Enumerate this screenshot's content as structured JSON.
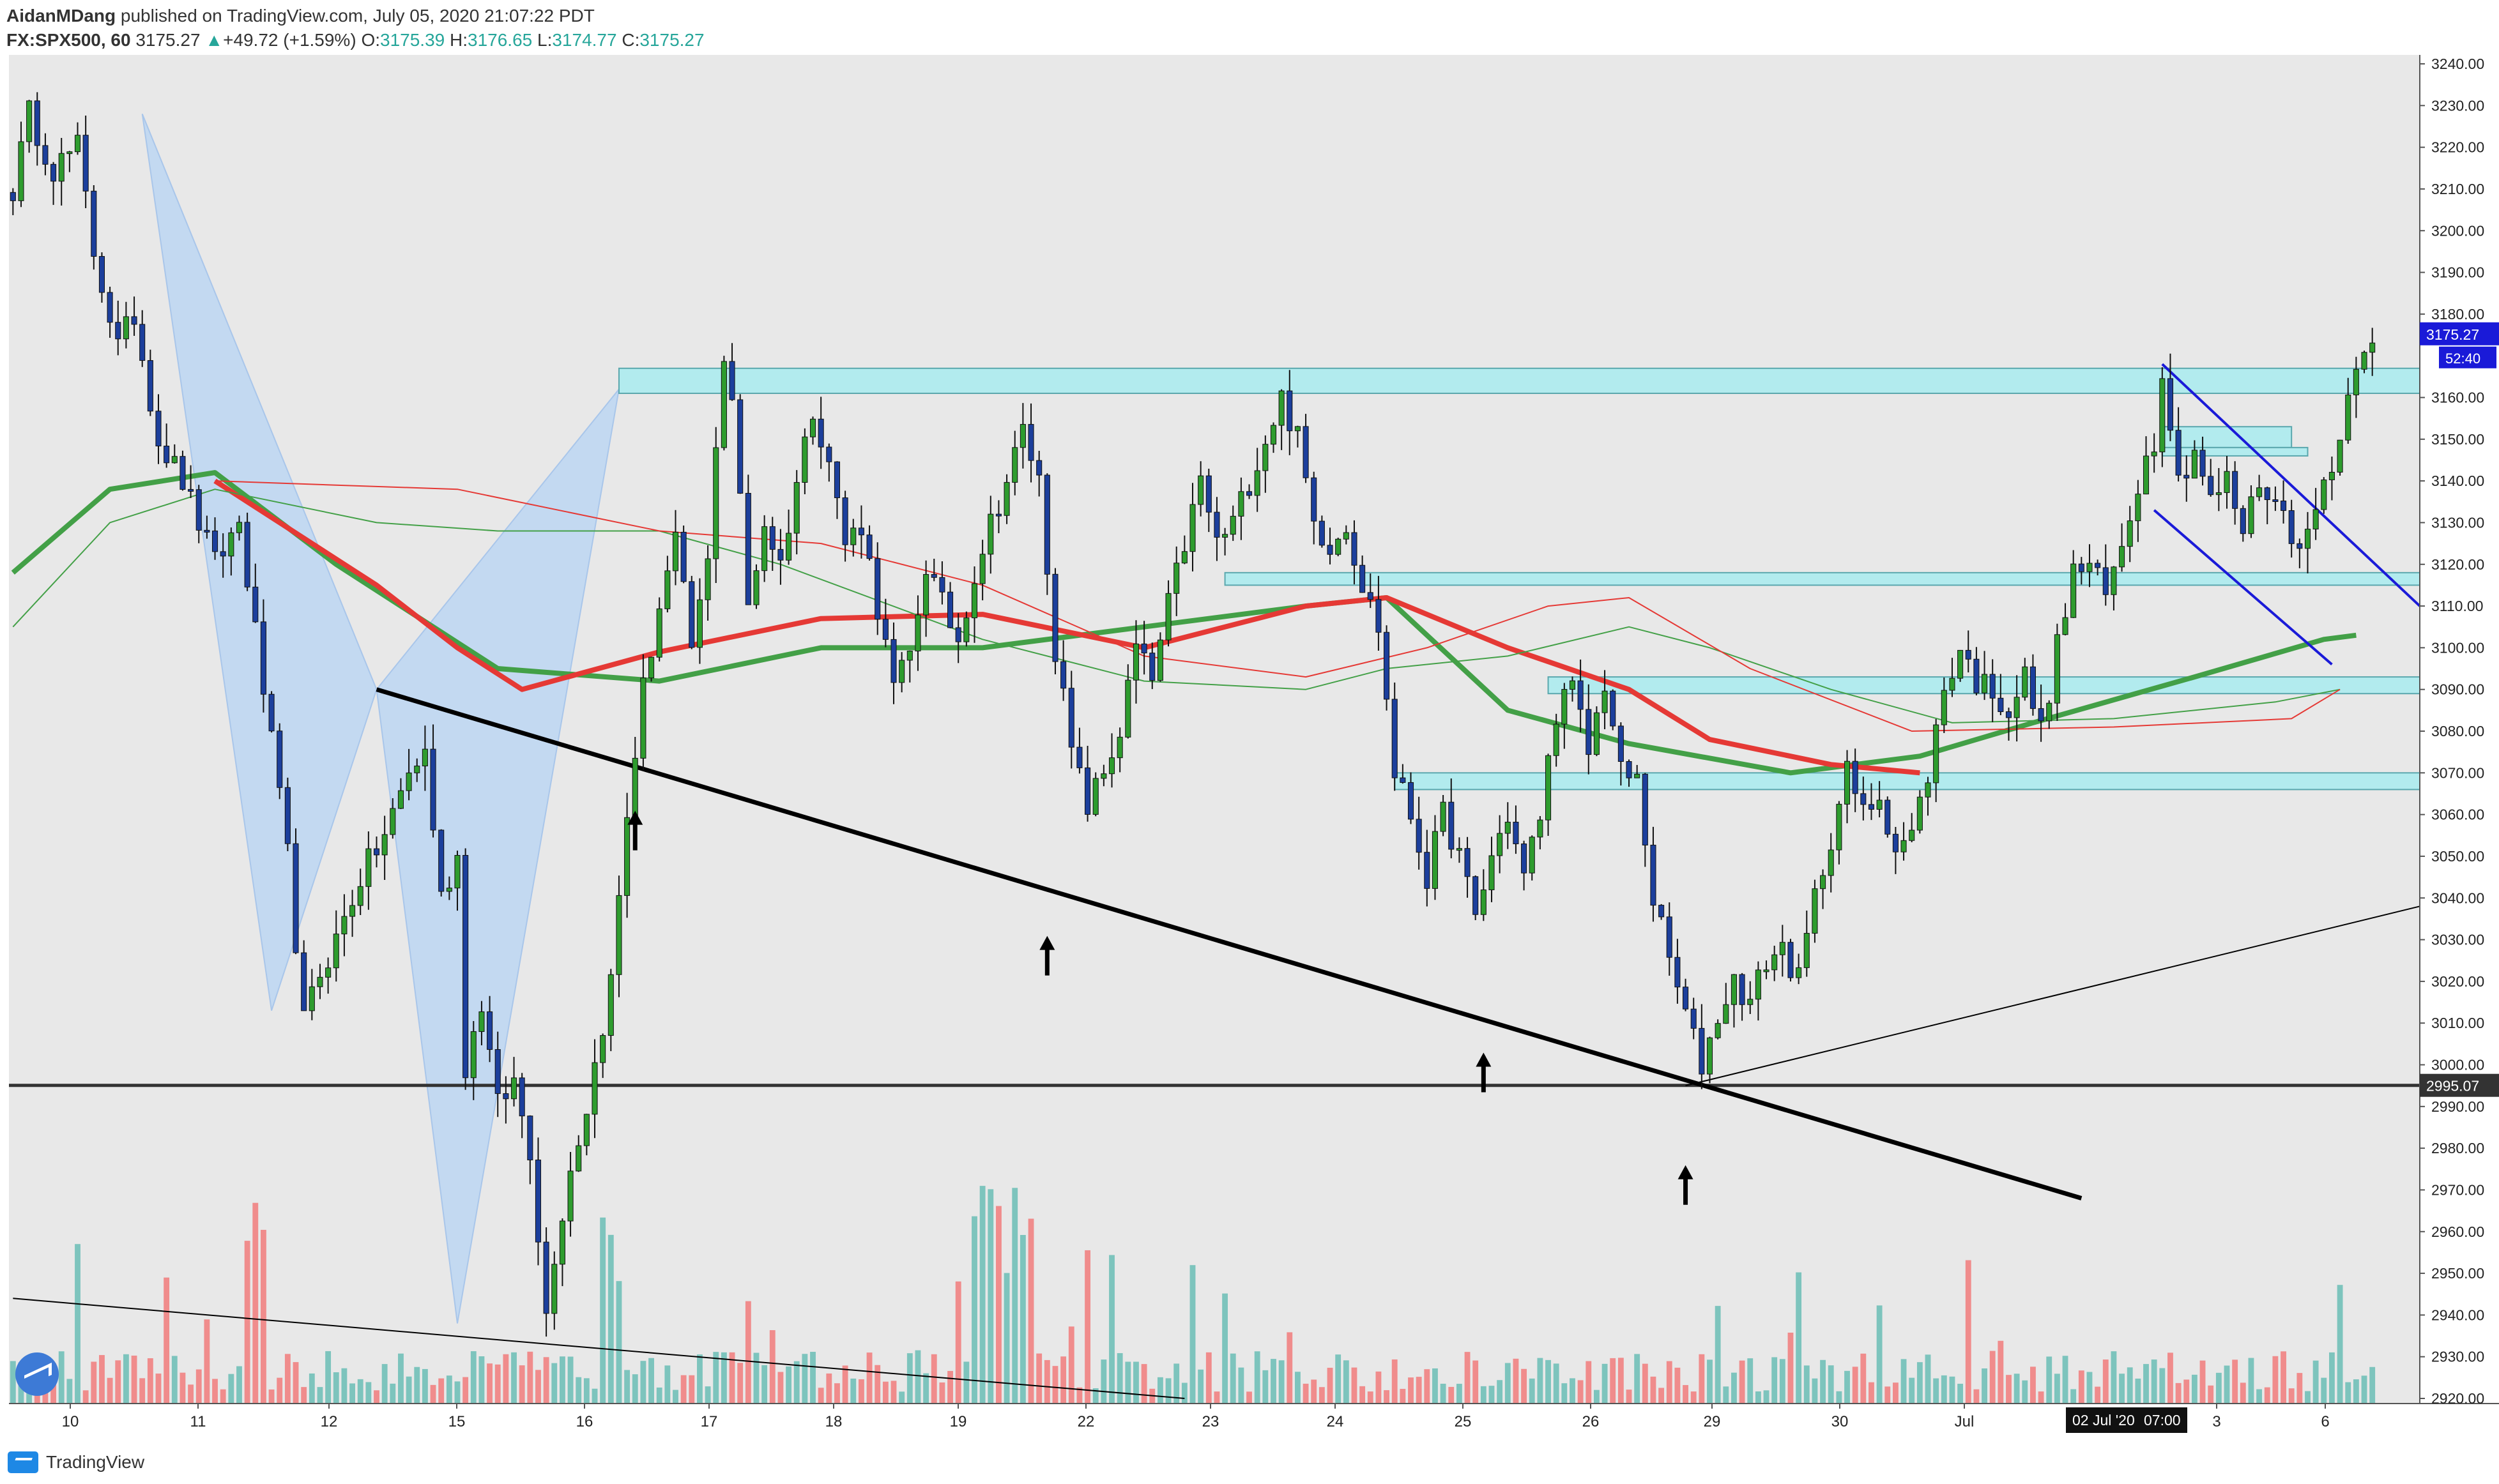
{
  "header": {
    "publisher": "AidanMDang",
    "published_text": "published on TradingView.com, July 05, 2020 21:07:22 PDT",
    "symbol": "FX:SPX500, 60",
    "last": "3175.27",
    "change": "+49.72 (+1.59%)",
    "o_label": "O:",
    "o_value": "3175.39",
    "h_label": "H:",
    "h_value": "3176.65",
    "l_label": "L:",
    "l_value": "3174.77",
    "c_label": "C:",
    "c_value": "3175.27"
  },
  "footer": {
    "brand": "TradingView",
    "logo_icon": "tradingview-logo-icon"
  },
  "colors": {
    "up": "#2e9c2e",
    "down": "#1c3f9c",
    "vol_up": "#7dc4bd",
    "vol_down": "#f08c8c",
    "zone": "#b2ebee",
    "ma_green": "#43a047",
    "ma_red": "#e53935",
    "channel": "#1a1ad8",
    "harmonic": "#bcd6f2",
    "plot_bg": "#e8e8e8"
  },
  "chart_data": {
    "type": "candlestick",
    "symbol": "FX:SPX500",
    "interval": "60",
    "price_range": [
      2920,
      3240
    ],
    "y_ticks": [
      "3240.00",
      "3230.00",
      "3220.00",
      "3210.00",
      "3200.00",
      "3190.00",
      "3180.00",
      "3160.00",
      "3150.00",
      "3140.00",
      "3130.00",
      "3120.00",
      "3110.00",
      "3100.00",
      "3090.00",
      "3080.00",
      "3070.00",
      "3060.00",
      "3050.00",
      "3040.00",
      "3030.00",
      "3020.00",
      "3010.00",
      "3000.00",
      "2990.00",
      "2980.00",
      "2970.00",
      "2960.00",
      "2950.00",
      "2940.00",
      "2930.00",
      "2920.00"
    ],
    "x_ticks": [
      "10",
      "11",
      "12",
      "15",
      "16",
      "17",
      "18",
      "19",
      "22",
      "23",
      "24",
      "25",
      "26",
      "29",
      "30",
      "Jul",
      "3",
      "6"
    ],
    "labels": {
      "last_price": "3175.27",
      "countdown": "52:40",
      "level_line": "2995.07",
      "crosshair_date": "02 Jul '20",
      "crosshair_time": "07:00"
    },
    "path": [
      [
        0,
        3210
      ],
      [
        2,
        3228
      ],
      [
        5,
        3215
      ],
      [
        8,
        3220
      ],
      [
        10,
        3195
      ],
      [
        13,
        3172
      ],
      [
        15,
        3180
      ],
      [
        18,
        3150
      ],
      [
        21,
        3140
      ],
      [
        25,
        3120
      ],
      [
        28,
        3130
      ],
      [
        31,
        3090
      ],
      [
        34,
        3050
      ],
      [
        36,
        3010
      ],
      [
        38,
        3022
      ],
      [
        40,
        3030
      ],
      [
        43,
        3045
      ],
      [
        46,
        3055
      ],
      [
        49,
        3070
      ],
      [
        51,
        3075
      ],
      [
        53,
        3040
      ],
      [
        55,
        3050
      ],
      [
        56,
        3000
      ],
      [
        58,
        3015
      ],
      [
        60,
        2990
      ],
      [
        62,
        2996
      ],
      [
        64,
        2980
      ],
      [
        66,
        2940
      ],
      [
        67,
        2955
      ],
      [
        69,
        2975
      ],
      [
        71,
        2990
      ],
      [
        74,
        3020
      ],
      [
        76,
        3060
      ],
      [
        78,
        3090
      ],
      [
        80,
        3110
      ],
      [
        82,
        3125
      ],
      [
        84,
        3100
      ],
      [
        86,
        3120
      ],
      [
        87,
        3150
      ],
      [
        88,
        3170
      ],
      [
        89,
        3160
      ],
      [
        91,
        3110
      ],
      [
        93,
        3130
      ],
      [
        95,
        3120
      ],
      [
        97,
        3140
      ],
      [
        99,
        3158
      ],
      [
        101,
        3145
      ],
      [
        103,
        3125
      ],
      [
        105,
        3130
      ],
      [
        107,
        3110
      ],
      [
        109,
        3090
      ],
      [
        111,
        3098
      ],
      [
        113,
        3120
      ],
      [
        115,
        3110
      ],
      [
        117,
        3102
      ],
      [
        119,
        3118
      ],
      [
        121,
        3130
      ],
      [
        123,
        3140
      ],
      [
        125,
        3152
      ],
      [
        127,
        3140
      ],
      [
        129,
        3100
      ],
      [
        131,
        3075
      ],
      [
        133,
        3062
      ],
      [
        135,
        3070
      ],
      [
        137,
        3080
      ],
      [
        139,
        3100
      ],
      [
        141,
        3092
      ],
      [
        143,
        3110
      ],
      [
        145,
        3125
      ],
      [
        147,
        3140
      ],
      [
        149,
        3125
      ],
      [
        151,
        3130
      ],
      [
        153,
        3140
      ],
      [
        155,
        3150
      ],
      [
        157,
        3160
      ],
      [
        159,
        3150
      ],
      [
        161,
        3130
      ],
      [
        163,
        3125
      ],
      [
        165,
        3130
      ],
      [
        167,
        3115
      ],
      [
        169,
        3105
      ],
      [
        171,
        3070
      ],
      [
        173,
        3060
      ],
      [
        175,
        3045
      ],
      [
        177,
        3060
      ],
      [
        179,
        3050
      ],
      [
        181,
        3035
      ],
      [
        183,
        3050
      ],
      [
        185,
        3060
      ],
      [
        187,
        3045
      ],
      [
        189,
        3060
      ],
      [
        191,
        3085
      ],
      [
        193,
        3090
      ],
      [
        195,
        3075
      ],
      [
        197,
        3092
      ],
      [
        199,
        3070
      ],
      [
        201,
        3068
      ],
      [
        203,
        3040
      ],
      [
        205,
        3025
      ],
      [
        207,
        3012
      ],
      [
        209,
        3000
      ],
      [
        211,
        3012
      ],
      [
        213,
        3020
      ],
      [
        215,
        3015
      ],
      [
        217,
        3025
      ],
      [
        219,
        3028
      ],
      [
        221,
        3020
      ],
      [
        223,
        3040
      ],
      [
        225,
        3055
      ],
      [
        227,
        3070
      ],
      [
        229,
        3060
      ],
      [
        231,
        3065
      ],
      [
        233,
        3052
      ],
      [
        235,
        3055
      ],
      [
        237,
        3070
      ],
      [
        239,
        3090
      ],
      [
        241,
        3100
      ],
      [
        243,
        3092
      ],
      [
        245,
        3090
      ],
      [
        247,
        3085
      ],
      [
        249,
        3093
      ],
      [
        251,
        3080
      ],
      [
        253,
        3100
      ],
      [
        255,
        3118
      ],
      [
        257,
        3120
      ],
      [
        259,
        3112
      ],
      [
        261,
        3125
      ],
      [
        263,
        3140
      ],
      [
        265,
        3150
      ],
      [
        266,
        3168
      ],
      [
        268,
        3140
      ],
      [
        270,
        3148
      ],
      [
        272,
        3135
      ],
      [
        274,
        3140
      ],
      [
        276,
        3128
      ],
      [
        278,
        3140
      ],
      [
        280,
        3135
      ],
      [
        282,
        3128
      ],
      [
        284,
        3126
      ],
      [
        286,
        3140
      ],
      [
        288,
        3150
      ],
      [
        290,
        3170
      ],
      [
        292,
        3176
      ]
    ],
    "candle_count": 293,
    "zones": [
      {
        "left_x": 75,
        "right_x": 298,
        "low": 3161,
        "high": 3167
      },
      {
        "left_x": 150,
        "right_x": 298,
        "low": 3115,
        "high": 3118
      },
      {
        "left_x": 190,
        "right_x": 298,
        "low": 3089,
        "high": 3093
      },
      {
        "left_x": 171,
        "right_x": 298,
        "low": 3066,
        "high": 3070
      },
      {
        "left_x": 266,
        "right_x": 282,
        "low": 3148,
        "high": 3153
      },
      {
        "left_x": 266,
        "right_x": 284,
        "low": 3146,
        "high": 3148
      }
    ],
    "horizontal_level": 2995.07,
    "trendlines": [
      {
        "x1": 45,
        "y1": 3090,
        "x2": 256,
        "y2": 2968,
        "weight": "bold"
      },
      {
        "x1": 207,
        "y1": 2995,
        "x2": 302,
        "y2": 3038,
        "weight": "thin"
      },
      {
        "x1": 0,
        "y1": 2944,
        "x2": 145,
        "y2": 2920,
        "weight": "thin"
      },
      {
        "x1": 266,
        "y1": 3168,
        "x2": 298,
        "y2": 3110,
        "weight": "channel"
      },
      {
        "x1": 265,
        "y1": 3133,
        "x2": 287,
        "y2": 3096,
        "weight": "channel"
      }
    ],
    "harmonic_pattern": [
      [
        16,
        3228
      ],
      [
        32,
        3013
      ],
      [
        45,
        3090
      ],
      [
        55,
        2938
      ],
      [
        75,
        3162
      ]
    ],
    "moving_averages": [
      {
        "style": "thick",
        "color": "green",
        "points": [
          [
            0,
            3118
          ],
          [
            12,
            3138
          ],
          [
            25,
            3142
          ],
          [
            40,
            3120
          ],
          [
            60,
            3095
          ],
          [
            80,
            3092
          ],
          [
            100,
            3100
          ],
          [
            120,
            3100
          ],
          [
            140,
            3105
          ],
          [
            160,
            3110
          ],
          [
            170,
            3112
          ],
          [
            185,
            3085
          ],
          [
            200,
            3077
          ],
          [
            220,
            3070
          ],
          [
            236,
            3074
          ],
          [
            250,
            3082
          ],
          [
            270,
            3093
          ],
          [
            286,
            3102
          ],
          [
            290,
            3103
          ]
        ]
      },
      {
        "style": "thick",
        "color": "red",
        "points": [
          [
            25,
            3140
          ],
          [
            33,
            3130
          ],
          [
            45,
            3115
          ],
          [
            55,
            3100
          ],
          [
            63,
            3090
          ],
          [
            80,
            3099
          ],
          [
            100,
            3107
          ],
          [
            120,
            3108
          ],
          [
            140,
            3100
          ],
          [
            160,
            3110
          ],
          [
            170,
            3112
          ],
          [
            185,
            3100
          ],
          [
            200,
            3090
          ],
          [
            210,
            3078
          ],
          [
            225,
            3072
          ],
          [
            236,
            3070
          ]
        ]
      },
      {
        "style": "thin",
        "color": "green",
        "points": [
          [
            0,
            3105
          ],
          [
            12,
            3130
          ],
          [
            25,
            3138
          ],
          [
            45,
            3130
          ],
          [
            60,
            3128
          ],
          [
            80,
            3128
          ],
          [
            95,
            3120
          ],
          [
            120,
            3102
          ],
          [
            140,
            3092
          ],
          [
            160,
            3090
          ],
          [
            170,
            3095
          ],
          [
            185,
            3098
          ],
          [
            200,
            3105
          ],
          [
            210,
            3100
          ],
          [
            225,
            3090
          ],
          [
            240,
            3082
          ],
          [
            260,
            3083
          ],
          [
            280,
            3087
          ],
          [
            288,
            3090
          ]
        ]
      },
      {
        "style": "thin",
        "color": "red",
        "points": [
          [
            25,
            3140
          ],
          [
            40,
            3139
          ],
          [
            55,
            3138
          ],
          [
            80,
            3128
          ],
          [
            100,
            3125
          ],
          [
            120,
            3115
          ],
          [
            140,
            3098
          ],
          [
            160,
            3093
          ],
          [
            175,
            3100
          ],
          [
            190,
            3110
          ],
          [
            200,
            3112
          ],
          [
            215,
            3095
          ],
          [
            235,
            3080
          ],
          [
            260,
            3081
          ],
          [
            282,
            3083
          ],
          [
            288,
            3090
          ]
        ]
      }
    ],
    "arrows": [
      {
        "x": 77,
        "price": 3060
      },
      {
        "x": 128,
        "price": 3030
      },
      {
        "x": 182,
        "price": 3002
      },
      {
        "x": 207,
        "price": 2975
      }
    ],
    "volume_max": 100
  }
}
